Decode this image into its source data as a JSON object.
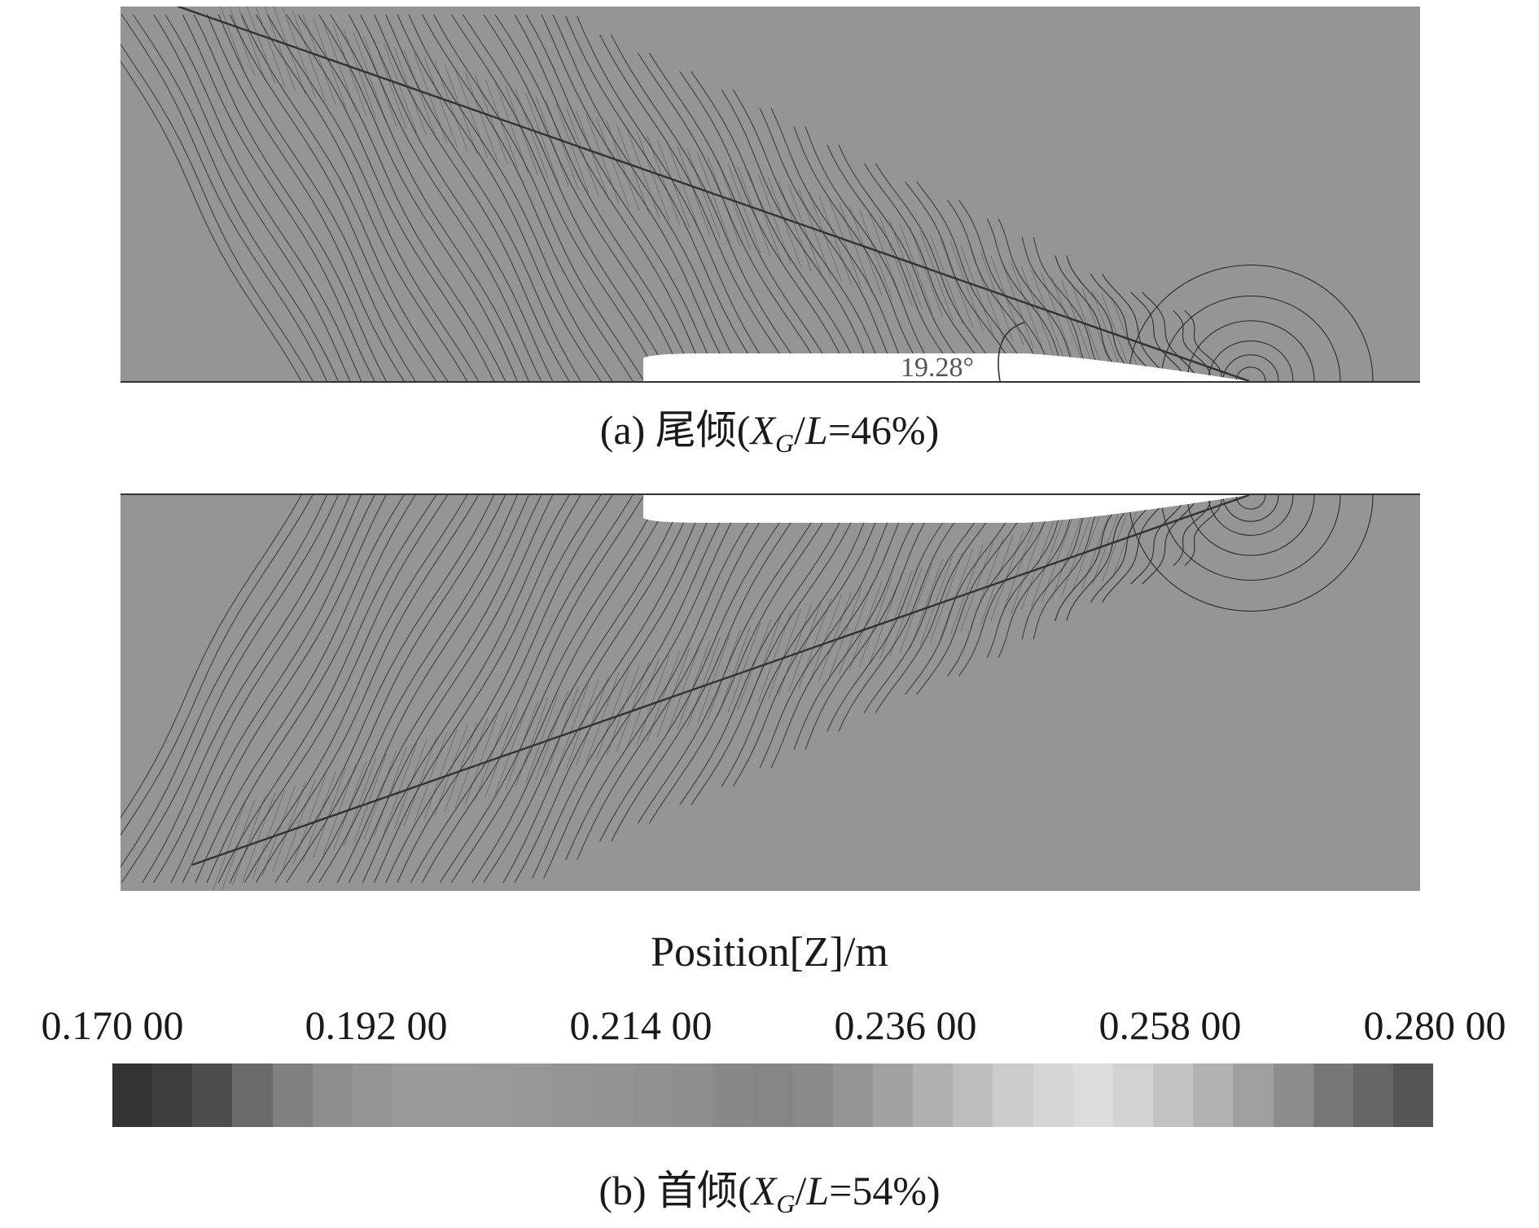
{
  "panel_a": {
    "angle_label": "19.28°",
    "caption": {
      "prefix": "(a) 尾倾(",
      "var": "X",
      "sub": "G",
      "mid": "/",
      "var2": "L",
      "suffix": "=46%)"
    }
  },
  "panel_b": {
    "caption": {
      "prefix": "(b) 首倾(",
      "var": "X",
      "sub": "G",
      "mid": "/",
      "var2": "L",
      "suffix": "=54%)"
    }
  },
  "colorbar": {
    "title": "Position[Z]/m",
    "ticks": [
      "0.170 00",
      "0.192 00",
      "0.214 00",
      "0.236 00",
      "0.258 00",
      "0.280 00"
    ],
    "min": 0.17,
    "max": 0.28,
    "swatches": [
      "#333333",
      "#3d3d3d",
      "#4d4d4d",
      "#6a6a6a",
      "#808080",
      "#8e8e8e",
      "#959595",
      "#9a9a9a",
      "#9a9a9a",
      "#999999",
      "#979797",
      "#959595",
      "#939393",
      "#919191",
      "#8f8f8f",
      "#888888",
      "#858585",
      "#8a8a8a",
      "#949494",
      "#a2a2a2",
      "#b0b0b0",
      "#bebebe",
      "#cccccc",
      "#d6d6d6",
      "#dcdcdc",
      "#d2d2d2",
      "#c2c2c2",
      "#b2b2b2",
      "#a0a0a0",
      "#8c8c8c",
      "#777777",
      "#666666",
      "#555555"
    ]
  }
}
